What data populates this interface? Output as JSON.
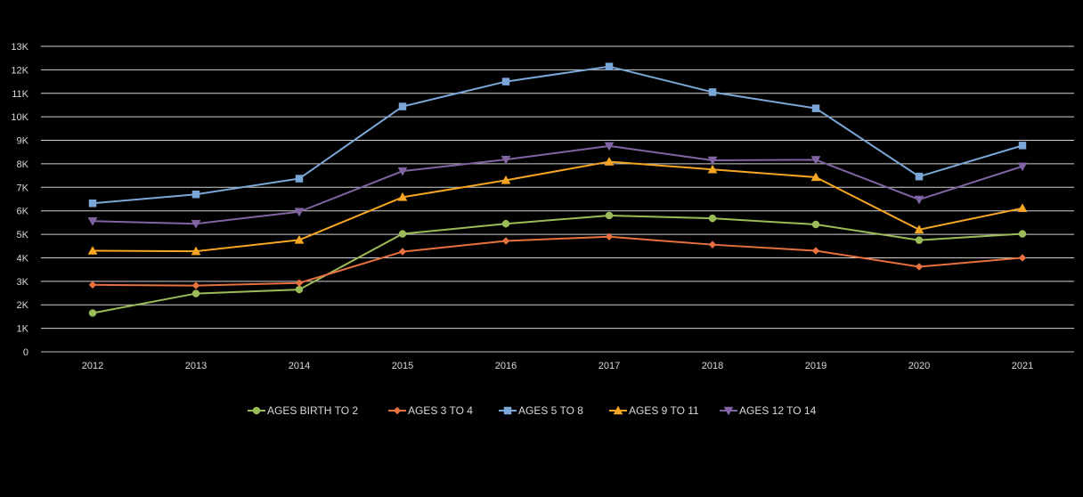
{
  "chart_data": {
    "type": "line",
    "title": "",
    "xlabel": "",
    "ylabel": "",
    "ylim": [
      0,
      13000
    ],
    "grid": true,
    "legend_position": "bottom",
    "categories": [
      "2012",
      "2013",
      "2014",
      "2015",
      "2016",
      "2017",
      "2018",
      "2019",
      "2020",
      "2021"
    ],
    "y_ticks": [
      {
        "value": 0,
        "label": "0"
      },
      {
        "value": 1000,
        "label": "1K"
      },
      {
        "value": 2000,
        "label": "2K"
      },
      {
        "value": 3000,
        "label": "3K"
      },
      {
        "value": 4000,
        "label": "4K"
      },
      {
        "value": 5000,
        "label": "5K"
      },
      {
        "value": 6000,
        "label": "6K"
      },
      {
        "value": 7000,
        "label": "7K"
      },
      {
        "value": 8000,
        "label": "8K"
      },
      {
        "value": 9000,
        "label": "9K"
      },
      {
        "value": 10000,
        "label": "10K"
      },
      {
        "value": 11000,
        "label": "11K"
      },
      {
        "value": 12000,
        "label": "12K"
      },
      {
        "value": 13000,
        "label": "13K"
      }
    ],
    "series": [
      {
        "name": "AGES BIRTH TO 2",
        "color": "#9bbb59",
        "marker": "circle",
        "values": [
          1650,
          2480,
          2650,
          5020,
          5450,
          5800,
          5680,
          5420,
          4750,
          5020
        ]
      },
      {
        "name": "AGES 3 TO 4",
        "color": "#e6703f",
        "marker": "diamond",
        "values": [
          2850,
          2820,
          2930,
          4260,
          4720,
          4900,
          4560,
          4300,
          3620,
          4000
        ]
      },
      {
        "name": "AGES 5 TO 8",
        "color": "#7ba7d8",
        "marker": "square",
        "values": [
          6320,
          6700,
          7370,
          10440,
          11500,
          12140,
          11050,
          10360,
          7460,
          8780
        ]
      },
      {
        "name": "AGES 9 TO 11",
        "color": "#f5a623",
        "marker": "triangle",
        "values": [
          4300,
          4280,
          4760,
          6580,
          7300,
          8090,
          7760,
          7430,
          5200,
          6110
        ]
      },
      {
        "name": "AGES 12 TO 14",
        "color": "#8064a2",
        "marker": "triangle-down",
        "values": [
          5560,
          5450,
          5960,
          7690,
          8180,
          8760,
          8150,
          8170,
          6480,
          7890
        ]
      }
    ]
  }
}
